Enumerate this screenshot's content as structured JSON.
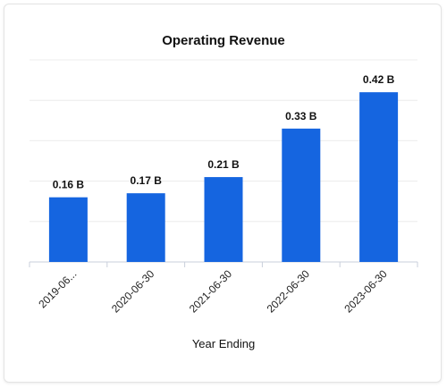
{
  "chart_data": {
    "type": "bar",
    "title": "Operating Revenue",
    "xlabel": "Year Ending",
    "ylabel": "",
    "categories": [
      "2019-06...",
      "2020-06-30",
      "2021-06-30",
      "2022-06-30",
      "2023-06-30"
    ],
    "values": [
      0.16,
      0.17,
      0.21,
      0.33,
      0.42
    ],
    "value_labels": [
      "0.16 B",
      "0.17 B",
      "0.21 B",
      "0.33 B",
      "0.42 B"
    ],
    "ylim": [
      0,
      0.5
    ],
    "grid": true,
    "legend": "none",
    "bar_color": "#1565e0",
    "grid_color": "#ececec"
  }
}
